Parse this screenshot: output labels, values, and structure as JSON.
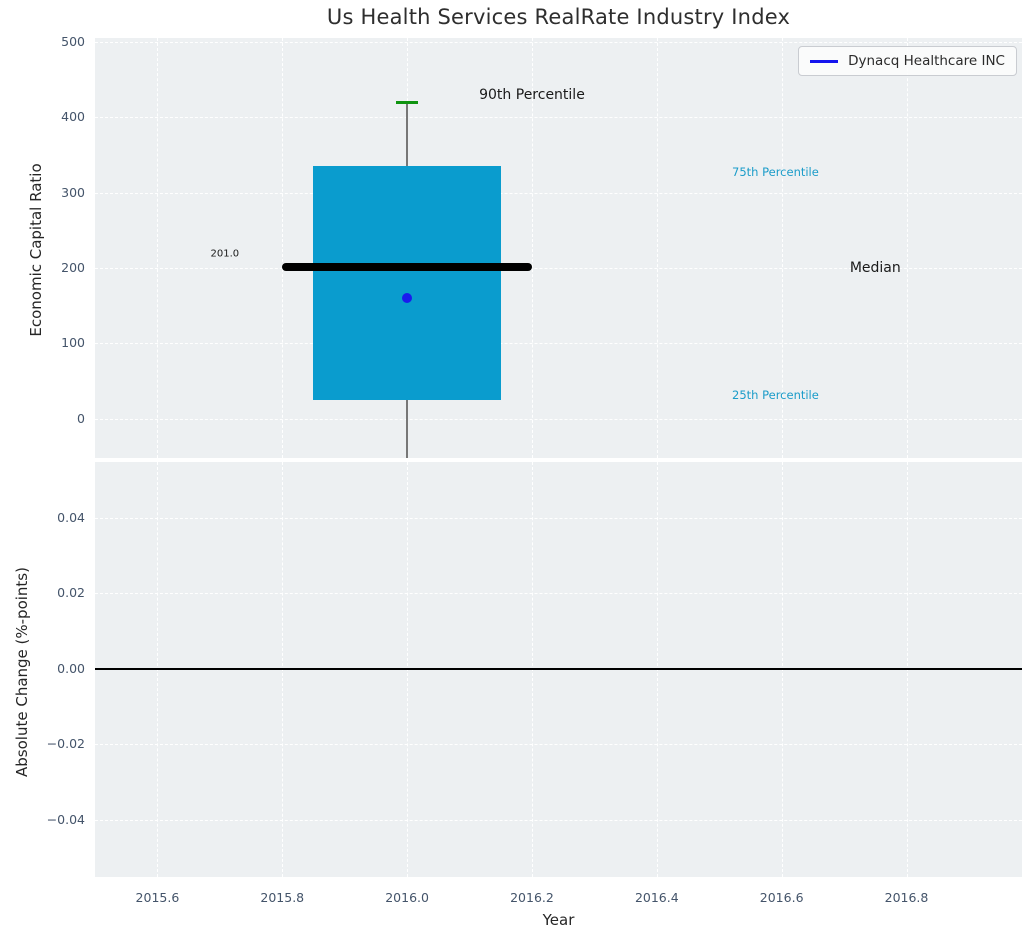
{
  "title": "Us Health Services RealRate Industry Index",
  "legend": {
    "label": "Dynacq Healthcare INC",
    "line_color": "#1414ee"
  },
  "colors": {
    "plot_background": "#edf0f2",
    "gridline": "#ffffff",
    "tick_label": "#44546a",
    "box_fill": "#0a9cce",
    "median_line": "#000000",
    "p90_cap": "#0f9410",
    "company_marker": "#1a1aee",
    "whisker": "#777777",
    "zero_line": "#000000"
  },
  "chart_data": [
    {
      "id": "top",
      "type": "boxplot",
      "title": "Us Health Services RealRate Industry Index",
      "ylabel": "Economic Capital Ratio",
      "grid": true,
      "legend_position": "upper right",
      "xlim": [
        2015.5,
        2016.985
      ],
      "ylim": [
        -52,
        505
      ],
      "xticks": {
        "values": [
          2015.6,
          2015.8,
          2016.0,
          2016.2,
          2016.4,
          2016.6,
          2016.8
        ],
        "labels": []
      },
      "yticks": {
        "values": [
          0,
          100,
          200,
          300,
          400,
          500
        ],
        "labels": [
          "0",
          "100",
          "200",
          "300",
          "400",
          "500"
        ]
      },
      "box": {
        "x_center": 2016.0,
        "box_left": 2015.85,
        "box_right": 2016.15,
        "median_left": 2015.8,
        "median_right": 2016.2,
        "p25": 25,
        "p75": 335,
        "median": 201,
        "median_label": "201.0",
        "p90": 419,
        "p90_cap_halfwidth_years": 0.018,
        "whisker_clipped_below_axis": true,
        "company_value": 160
      },
      "annotations": [
        {
          "text": "90th Percentile",
          "x": 2016.2,
          "y": 430,
          "color": "#1a1a1a",
          "size": 14
        },
        {
          "text": "75th Percentile",
          "x": 2016.59,
          "y": 327,
          "color": "#1b9cc9",
          "size": 11.5
        },
        {
          "text": "Median",
          "x": 2016.75,
          "y": 200,
          "color": "#1a1a1a",
          "size": 14
        },
        {
          "text": "25th Percentile",
          "x": 2016.59,
          "y": 31,
          "color": "#1b9cc9",
          "size": 11.5
        },
        {
          "text": "201.0",
          "x": 2015.708,
          "y": 219,
          "color": "#1a1a1a",
          "size": 10
        }
      ]
    },
    {
      "id": "bottom",
      "type": "line",
      "ylabel": "Absolute Change (%-points)",
      "xlabel": "Year",
      "grid": true,
      "xlim": [
        2015.5,
        2016.985
      ],
      "ylim": [
        -0.0551,
        0.0548
      ],
      "xticks": {
        "values": [
          2015.6,
          2015.8,
          2016.0,
          2016.2,
          2016.4,
          2016.6,
          2016.8
        ],
        "labels": [
          "2015.6",
          "2015.8",
          "2016.0",
          "2016.2",
          "2016.4",
          "2016.6",
          "2016.8"
        ]
      },
      "yticks": {
        "values": [
          0.04,
          0.02,
          0.0,
          -0.02,
          -0.04
        ],
        "labels": [
          "0.04",
          "0.02",
          "0.00",
          "−0.02",
          "−0.04"
        ]
      },
      "zero_line": 0.0,
      "series": []
    }
  ]
}
